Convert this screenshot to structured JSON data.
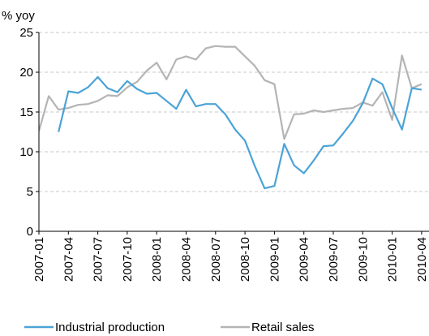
{
  "chart_data": {
    "type": "line",
    "y_axis_label": "% yoy",
    "categories": [
      "2007-01",
      null,
      null,
      "2007-04",
      null,
      null,
      "2007-07",
      null,
      null,
      "2007-10",
      null,
      null,
      "2008-01",
      null,
      null,
      "2008-04",
      null,
      null,
      "2008-07",
      null,
      null,
      "2008-10",
      null,
      null,
      "2009-01",
      null,
      null,
      "2009-04",
      null,
      null,
      "2009-07",
      null,
      null,
      "2009-10",
      null,
      null,
      "2010-01",
      null,
      null,
      "2010-04"
    ],
    "series": [
      {
        "name": "Industrial production",
        "color": "#4ba3d6",
        "values": [
          null,
          null,
          12.5,
          17.6,
          17.4,
          18.1,
          19.4,
          18.0,
          17.5,
          18.9,
          17.9,
          17.3,
          17.4,
          16.4,
          15.4,
          17.8,
          15.7,
          16.0,
          16.0,
          14.7,
          12.8,
          11.4,
          8.2,
          5.4,
          5.7,
          11.0,
          8.3,
          7.3,
          8.9,
          10.7,
          10.8,
          12.3,
          13.9,
          16.1,
          19.2,
          18.5,
          15.5,
          12.8,
          18.0,
          17.8
        ]
      },
      {
        "name": "Retail sales",
        "color": "#b4b4b4",
        "values": [
          12.6,
          17.0,
          15.3,
          15.5,
          15.9,
          16.0,
          16.4,
          17.1,
          17.0,
          18.1,
          18.8,
          20.2,
          21.2,
          19.1,
          21.6,
          22.0,
          21.6,
          23.0,
          23.3,
          23.2,
          23.2,
          22.0,
          20.8,
          19.0,
          18.5,
          11.6,
          14.7,
          14.8,
          15.2,
          15.0,
          15.2,
          15.4,
          15.5,
          16.2,
          15.8,
          17.5,
          14.0,
          22.1,
          18.0,
          18.5
        ]
      }
    ],
    "ylim": [
      0,
      25
    ],
    "yticks": [
      0,
      5,
      10,
      15,
      20,
      25
    ],
    "grid": true,
    "legend": "bottom"
  }
}
